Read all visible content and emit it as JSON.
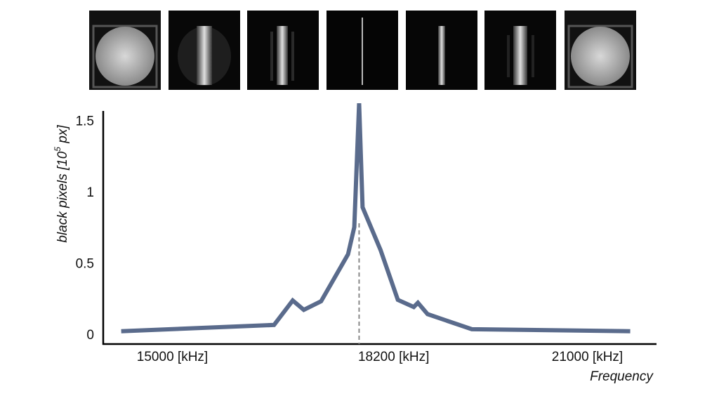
{
  "chart_data": {
    "type": "line",
    "x_label": "Frequency",
    "y_label": {
      "text": "black pixels [10",
      "superscript": "5",
      "suffix": " px]"
    },
    "x": [
      14260,
      16470,
      16740,
      16900,
      17150,
      17540,
      17630,
      17700,
      17750,
      18010,
      18260,
      18490,
      18550,
      18690,
      19330,
      21620
    ],
    "series": [
      {
        "color": "#5a6b8c",
        "values": [
          0.03,
          0.074,
          0.246,
          0.18,
          0.24,
          0.57,
          0.76,
          1.63,
          0.9,
          0.6,
          0.25,
          0.2,
          0.23,
          0.15,
          0.044,
          0.03
        ]
      }
    ],
    "xlim": [
      14000,
      22000
    ],
    "xticks": [
      {
        "value": 15000,
        "label": "15000 [kHz]"
      },
      {
        "value": 18200,
        "label": "18200 [kHz]"
      },
      {
        "value": 21000,
        "label": "21000 [kHz]"
      }
    ],
    "ylim": [
      -0.06,
      1.65
    ],
    "yticks": [
      0,
      0.5,
      1,
      1.5
    ],
    "grid": false
  }
}
